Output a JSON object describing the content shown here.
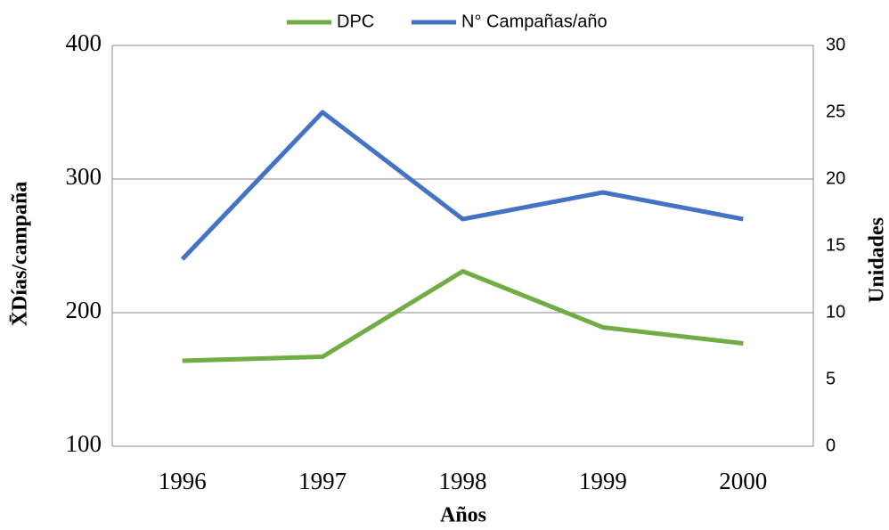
{
  "chart_data": {
    "type": "line",
    "x_label": "Años",
    "y_label": "X̄Días/campaña",
    "y2_label": "Unidades",
    "categories": [
      "1996",
      "1997",
      "1998",
      "1999",
      "2000"
    ],
    "series": [
      {
        "name": "DPC",
        "color": "#70ad47",
        "values": [
          164,
          167,
          231,
          189,
          177
        ]
      },
      {
        "name": "N° Campañas/año",
        "color": "#4472c4",
        "axis": "y2",
        "values": [
          14,
          25,
          17,
          19,
          17
        ]
      }
    ],
    "ylim": [
      100,
      400
    ],
    "yticks": [
      100,
      200,
      300,
      400
    ],
    "y2lim": [
      0,
      30
    ],
    "y2ticks": [
      0,
      5,
      10,
      15,
      20,
      25,
      30
    ],
    "grid": true,
    "legend": "top"
  }
}
